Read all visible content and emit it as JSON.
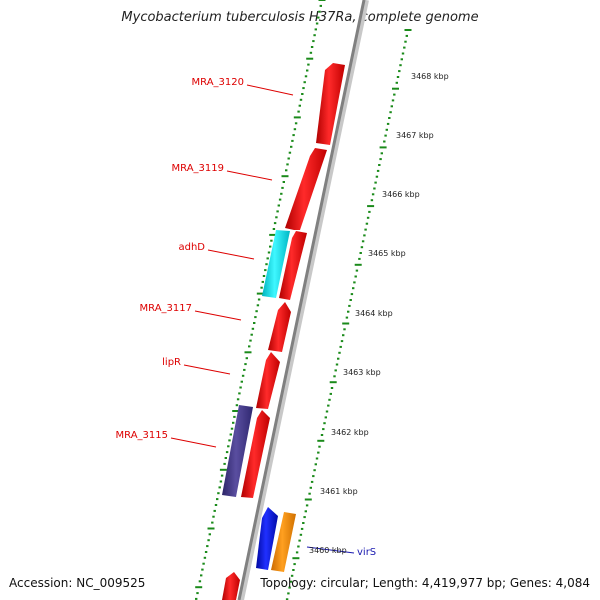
{
  "title": "Mycobacterium tuberculosis H37Ra, complete genome",
  "accession": "Accession: NC_009525",
  "summary": "Topology: circular; Length: 4,419,977 bp; Genes: 4,084",
  "scale_labels": [
    "3468 kbp",
    "3467 kbp",
    "3466 kbp",
    "3465 kbp",
    "3464 kbp",
    "3463 kbp",
    "3462 kbp",
    "3461 kbp",
    "3460 kbp"
  ],
  "gene_labels": [
    "MRA_3120",
    "MRA_3119",
    "adhD",
    "MRA_3117",
    "lipR",
    "MRA_3115",
    "virS"
  ],
  "colors": {
    "forward_cds": "#ff0000",
    "adhD": "#00e5ee",
    "MRA_3115_block": "#4b3f8c",
    "blue_block": "#0a14e0",
    "orange_block": "#ff8c00",
    "backbone": "#888888",
    "ticks": "#1a8a1a",
    "label_red": "#dd0000",
    "label_blue": "#1a1ab0"
  }
}
